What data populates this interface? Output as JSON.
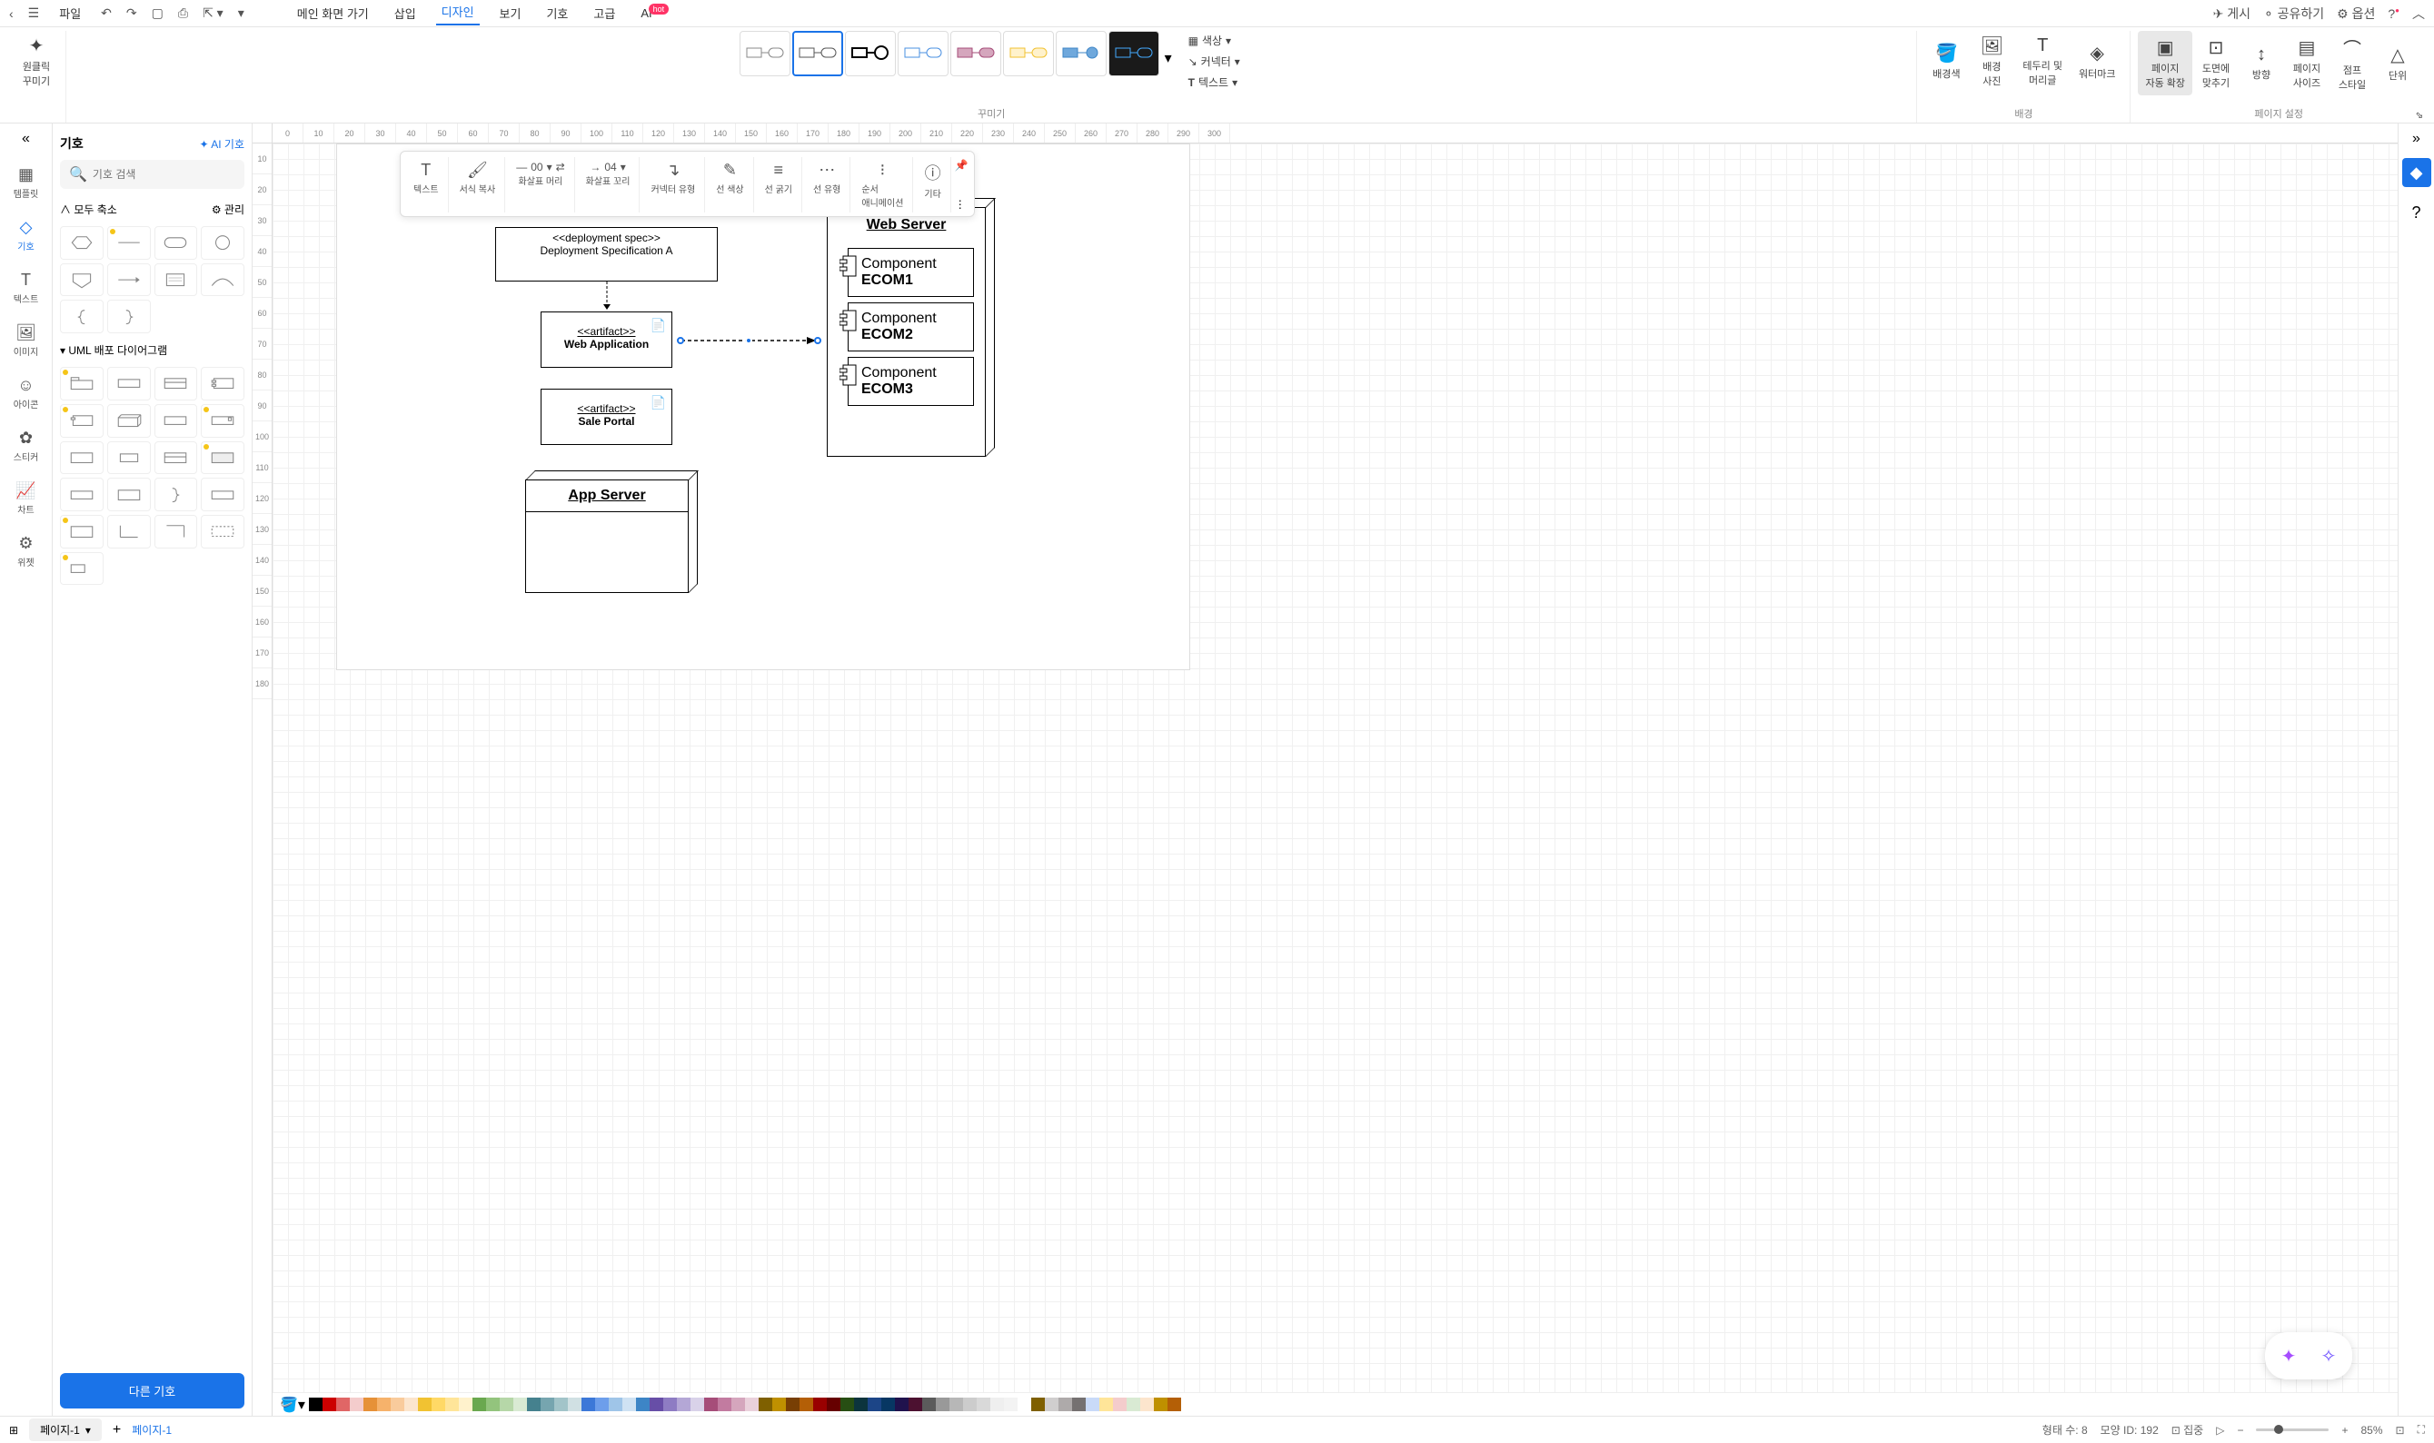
{
  "topbar": {
    "file": "파일",
    "menu": [
      "메인 화면 가기",
      "삽입",
      "디자인",
      "보기",
      "기호",
      "고급",
      "AI"
    ],
    "active_index": 2,
    "ai_badge": "hot",
    "right": {
      "publish": "게시",
      "share": "공유하기",
      "options": "옵션"
    }
  },
  "ribbon": {
    "oneclick": "원클릭\n꾸미기",
    "group_decorate": "꾸미기",
    "group_bg": "배경",
    "group_page": "페이지 설정",
    "color": "색상",
    "connector": "커넥터",
    "text": "텍스트",
    "bg_color": "배경색",
    "bg_photo": "배경\n사진",
    "border_header": "테두리 및\n머리글",
    "watermark": "워터마크",
    "page_autoexpand": "페이지\n자동 확장",
    "fit_drawing": "도면에\n맞추기",
    "direction": "방향",
    "page_size": "페이지\n사이즈",
    "jump_style": "점프\n스타일",
    "unit": "단위"
  },
  "leftRail": {
    "template": "템플릿",
    "symbol": "기호",
    "text": "텍스트",
    "image": "이미지",
    "icon": "아이콘",
    "sticker": "스티커",
    "chart": "차트",
    "widget": "위젯"
  },
  "symbolPanel": {
    "title": "기호",
    "ai_symbol": "AI 기호",
    "search_placeholder": "기호 검색",
    "collapse_all": "모두 축소",
    "manage": "관리",
    "section_uml": "UML 배포 다이어그램",
    "more_button": "다른 기호"
  },
  "floatToolbar": {
    "text": "텍스트",
    "copy_format": "서식 복사",
    "arrow_head": "화살표 머리",
    "arrow_head_val": "00",
    "arrow_tail": "화살표 꼬리",
    "arrow_tail_val": "04",
    "connector_type": "커넥터 유형",
    "line_color": "선 색상",
    "line_weight": "선 굵기",
    "line_style": "선 유형",
    "sequence_anim": "순서\n애니메이션",
    "other": "기타"
  },
  "diagram": {
    "deploy_spec_stereotype": "<<deployment spec>>",
    "deploy_spec_name": "Deployment Specification A",
    "artifact1_stereotype": "<<artifact>>",
    "artifact1_name": "Web Application",
    "artifact2_stereotype": "<<artifact>>",
    "artifact2_name": "Sale Portal",
    "app_server": "App Server",
    "web_server": "Web Server",
    "comp1_label": "Component",
    "comp1_name": "ECOM1",
    "comp2_label": "Component",
    "comp2_name": "ECOM2",
    "comp3_label": "Component",
    "comp3_name": "ECOM3"
  },
  "rulerH": [
    "0",
    "10",
    "20",
    "30",
    "40",
    "50",
    "60",
    "70",
    "80",
    "90",
    "100",
    "110",
    "120",
    "130",
    "140",
    "150",
    "160",
    "170",
    "180",
    "190",
    "200",
    "210",
    "220",
    "230",
    "240",
    "250",
    "260",
    "270",
    "280",
    "290",
    "300"
  ],
  "rulerV": [
    "10",
    "20",
    "30",
    "40",
    "50",
    "60",
    "70",
    "80",
    "90",
    "100",
    "110",
    "120",
    "130",
    "140",
    "150",
    "160",
    "170",
    "180"
  ],
  "bottom": {
    "page_tab": "페이지-1",
    "page_label": "페이지-1",
    "shape_count_label": "형태 수:",
    "shape_count": "8",
    "shape_id_label": "모양 ID:",
    "shape_id": "192",
    "focus": "집중",
    "zoom": "85%"
  },
  "colors": [
    "#000000",
    "#cc0000",
    "#e06666",
    "#f4cccc",
    "#e69138",
    "#f6b26b",
    "#f9cb9c",
    "#fce5cd",
    "#f1c232",
    "#ffd966",
    "#ffe599",
    "#fff2cc",
    "#6aa84f",
    "#93c47d",
    "#b6d7a8",
    "#d9ead3",
    "#45818e",
    "#76a5af",
    "#a2c4c9",
    "#d0e0e3",
    "#3c78d8",
    "#6d9eeb",
    "#9fc5e8",
    "#cfe2f3",
    "#3d85c6",
    "#674ea7",
    "#8e7cc3",
    "#b4a7d6",
    "#d9d2e9",
    "#a64d79",
    "#c27ba0",
    "#d5a6bd",
    "#ead1dc",
    "#7f6000",
    "#bf9000",
    "#783f04",
    "#b45f06",
    "#990000",
    "#660000",
    "#274e13",
    "#0c343d",
    "#1c4587",
    "#073763",
    "#20124d",
    "#4c1130",
    "#5b5b5b",
    "#999999",
    "#b7b7b7",
    "#cccccc",
    "#d9d9d9",
    "#efefef",
    "#f3f3f3",
    "#ffffff",
    "#7f6000",
    "#d0cece",
    "#aeaaaa",
    "#757171",
    "#c9daf8",
    "#ffe599",
    "#f4cccc",
    "#d9ead3",
    "#fce5cd",
    "#bf9000",
    "#b45f06"
  ],
  "colors_extra": [
    "#134f5c",
    "#741b47"
  ]
}
